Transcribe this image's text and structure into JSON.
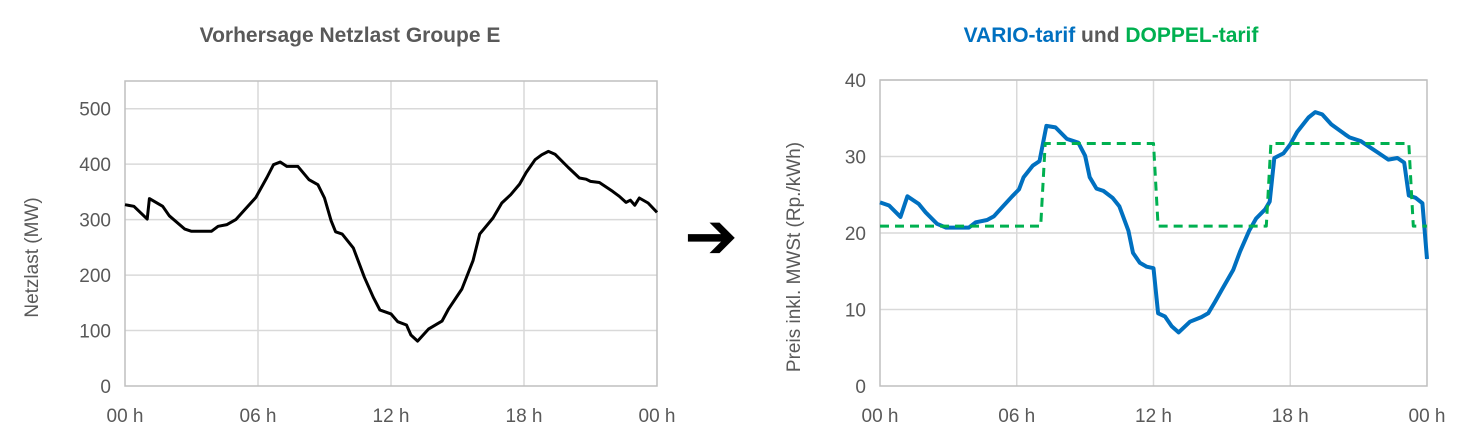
{
  "chart_data": [
    {
      "type": "line",
      "title": "Vorhersage Netzlast Groupe E",
      "title_color": "#595959",
      "xlabel": "",
      "ylabel": "Netzlast (MW)",
      "x_tick_labels": [
        "00 h",
        "06 h",
        "12 h",
        "18 h",
        "00 h"
      ],
      "x_ticks": [
        0,
        6,
        12,
        18,
        24
      ],
      "y_ticks": [
        0,
        100,
        200,
        300,
        400,
        500
      ],
      "y_tick_labels": [
        "0",
        "100",
        "200",
        "300",
        "400",
        "500"
      ],
      "xlim": [
        0,
        24
      ],
      "ylim": [
        0,
        550
      ],
      "grid": true,
      "series": [
        {
          "color": "#000000",
          "style": "solid",
          "points": [
            [
              0,
              327
            ],
            [
              0.4,
              324
            ],
            [
              1,
              301
            ],
            [
              1.1,
              338
            ],
            [
              1.7,
              324
            ],
            [
              2,
              307
            ],
            [
              2.7,
              283
            ],
            [
              3,
              279
            ],
            [
              3.9,
              279
            ],
            [
              4.2,
              288
            ],
            [
              4.6,
              291
            ],
            [
              5,
              300
            ],
            [
              5.4,
              318
            ],
            [
              5.9,
              340
            ],
            [
              6.4,
              376
            ],
            [
              6.7,
              399
            ],
            [
              7,
              404
            ],
            [
              7.3,
              396
            ],
            [
              7.8,
              396
            ],
            [
              8.3,
              372
            ],
            [
              8.7,
              363
            ],
            [
              9,
              339
            ],
            [
              9.3,
              298
            ],
            [
              9.5,
              278
            ],
            [
              9.8,
              274
            ],
            [
              10.3,
              249
            ],
            [
              10.8,
              196
            ],
            [
              11.2,
              160
            ],
            [
              11.5,
              137
            ],
            [
              12,
              130
            ],
            [
              12.3,
              116
            ],
            [
              12.7,
              110
            ],
            [
              12.9,
              92
            ],
            [
              13.2,
              81
            ],
            [
              13.7,
              103
            ],
            [
              14.3,
              117
            ],
            [
              14.6,
              139
            ],
            [
              15.2,
              175
            ],
            [
              15.7,
              226
            ],
            [
              16,
              274
            ],
            [
              16.6,
              303
            ],
            [
              17,
              330
            ],
            [
              17.4,
              345
            ],
            [
              17.8,
              364
            ],
            [
              18.1,
              385
            ],
            [
              18.5,
              408
            ],
            [
              18.8,
              417
            ],
            [
              19.1,
              423
            ],
            [
              19.4,
              418
            ],
            [
              20,
              394
            ],
            [
              20.5,
              375
            ],
            [
              20.8,
              373
            ],
            [
              21,
              369
            ],
            [
              21.4,
              367
            ],
            [
              22,
              351
            ],
            [
              22.3,
              342
            ],
            [
              22.6,
              331
            ],
            [
              22.8,
              335
            ],
            [
              23,
              326
            ],
            [
              23.2,
              339
            ],
            [
              23.6,
              330
            ],
            [
              24,
              313
            ]
          ]
        }
      ]
    },
    {
      "type": "line",
      "title_parts": [
        {
          "text": "VARIO-tarif",
          "color": "#0070C0"
        },
        {
          "text": " und ",
          "color": "#595959"
        },
        {
          "text": "DOPPEL-tarif",
          "color": "#00B050"
        }
      ],
      "xlabel": "",
      "ylabel": "Preis inkl. MWSt (Rp./kWh)",
      "x_tick_labels": [
        "00 h",
        "06 h",
        "12 h",
        "18 h",
        "00 h"
      ],
      "x_ticks": [
        0,
        6,
        12,
        18,
        24
      ],
      "y_ticks": [
        0,
        10,
        20,
        30,
        40
      ],
      "y_tick_labels": [
        "0",
        "10",
        "20",
        "30",
        "40"
      ],
      "xlim": [
        0,
        24
      ],
      "ylim": [
        0,
        40
      ],
      "grid": true,
      "series": [
        {
          "name": "VARIO-tarif",
          "color": "#0070C0",
          "style": "solid",
          "points": [
            [
              0,
              24.0
            ],
            [
              0.4,
              23.6
            ],
            [
              0.9,
              22.1
            ],
            [
              1.2,
              24.8
            ],
            [
              1.7,
              23.8
            ],
            [
              2,
              22.7
            ],
            [
              2.5,
              21.2
            ],
            [
              2.9,
              20.7
            ],
            [
              3.9,
              20.7
            ],
            [
              4.2,
              21.4
            ],
            [
              4.7,
              21.7
            ],
            [
              5,
              22.2
            ],
            [
              5.4,
              23.5
            ],
            [
              5.8,
              24.8
            ],
            [
              6.1,
              25.7
            ],
            [
              6.3,
              27.3
            ],
            [
              6.7,
              28.8
            ],
            [
              7,
              29.4
            ],
            [
              7.3,
              34.0
            ],
            [
              7.7,
              33.8
            ],
            [
              8.2,
              32.3
            ],
            [
              8.7,
              31.8
            ],
            [
              9,
              30.1
            ],
            [
              9.2,
              27.3
            ],
            [
              9.5,
              25.8
            ],
            [
              9.8,
              25.5
            ],
            [
              10.2,
              24.6
            ],
            [
              10.5,
              23.5
            ],
            [
              10.9,
              20.3
            ],
            [
              11.1,
              17.4
            ],
            [
              11.4,
              16.1
            ],
            [
              11.7,
              15.6
            ],
            [
              12,
              15.4
            ],
            [
              12.2,
              9.5
            ],
            [
              12.5,
              9.1
            ],
            [
              12.8,
              7.8
            ],
            [
              13.1,
              7.0
            ],
            [
              13.6,
              8.4
            ],
            [
              14.1,
              9.0
            ],
            [
              14.4,
              9.5
            ],
            [
              14.7,
              11.0
            ],
            [
              15,
              12.6
            ],
            [
              15.5,
              15.2
            ],
            [
              15.8,
              17.6
            ],
            [
              16.2,
              20.3
            ],
            [
              16.5,
              21.9
            ],
            [
              16.9,
              23.1
            ],
            [
              17.1,
              24.1
            ],
            [
              17.3,
              29.8
            ],
            [
              17.7,
              30.4
            ],
            [
              18,
              31.6
            ],
            [
              18.3,
              33.2
            ],
            [
              18.8,
              35.1
            ],
            [
              19.1,
              35.8
            ],
            [
              19.4,
              35.5
            ],
            [
              19.8,
              34.2
            ],
            [
              20.4,
              32.9
            ],
            [
              20.6,
              32.5
            ],
            [
              21.1,
              32.0
            ],
            [
              21.5,
              31.2
            ],
            [
              21.9,
              30.4
            ],
            [
              22.3,
              29.6
            ],
            [
              22.7,
              29.8
            ],
            [
              23,
              29.2
            ],
            [
              23.2,
              24.9
            ],
            [
              23.5,
              24.6
            ],
            [
              23.8,
              23.9
            ],
            [
              24,
              16.6
            ]
          ]
        },
        {
          "name": "DOPPEL-tarif",
          "color": "#00B050",
          "style": "dashed",
          "points": [
            [
              0,
              20.9
            ],
            [
              7.05,
              20.9
            ],
            [
              7.25,
              31.7
            ],
            [
              12,
              31.7
            ],
            [
              12.2,
              20.9
            ],
            [
              16.95,
              20.9
            ],
            [
              17.15,
              31.7
            ],
            [
              23.2,
              31.7
            ],
            [
              23.4,
              20.9
            ],
            [
              24,
              20.9
            ]
          ]
        }
      ]
    }
  ],
  "arrow": {
    "icon": "right-arrow-icon",
    "glyph": "➔",
    "color": "#000000"
  }
}
